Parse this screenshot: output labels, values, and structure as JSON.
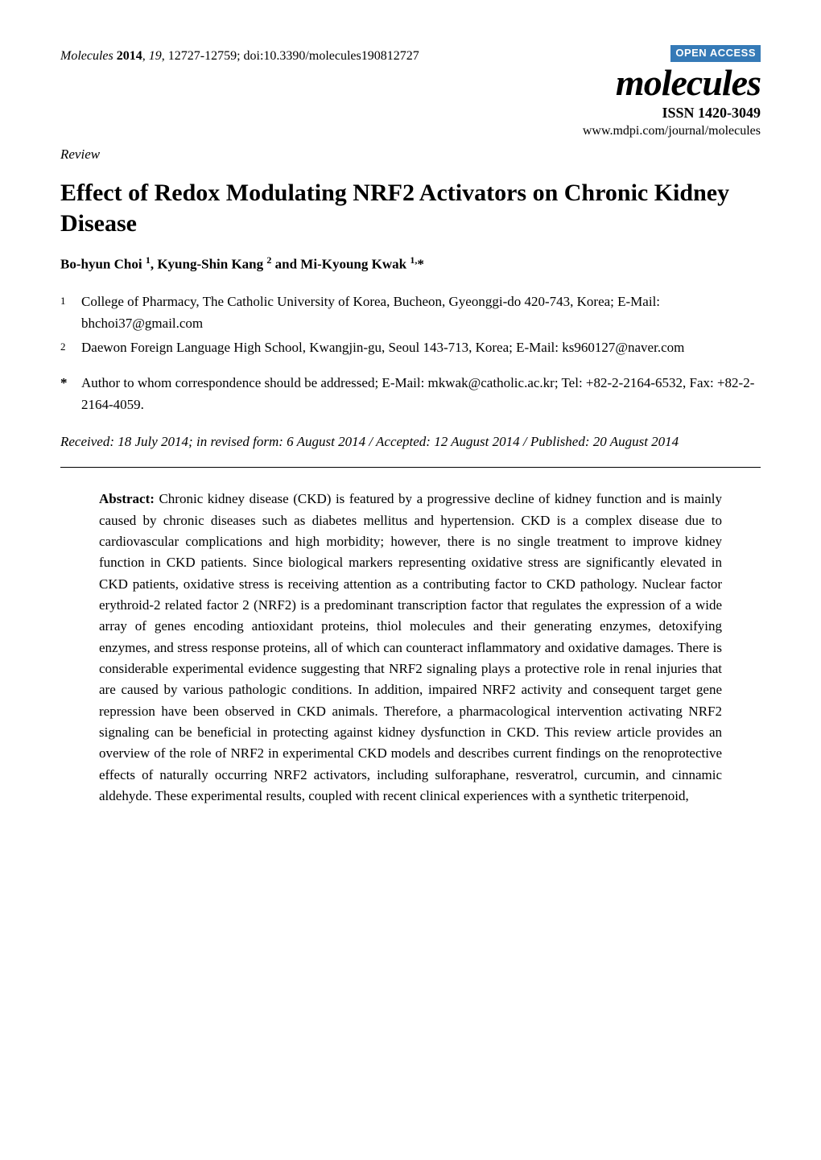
{
  "header": {
    "citation_prefix": "Molecules",
    "year": "2014",
    "volume": "19",
    "pages": "12727-12759",
    "doi": "doi:10.3390/molecules190812727",
    "open_access": "OPEN ACCESS",
    "journal_logo": "molecules",
    "issn": "ISSN 1420-3049",
    "url": "www.mdpi.com/journal/molecules"
  },
  "article_type": "Review",
  "title": "Effect of Redox Modulating NRF2 Activators on Chronic Kidney Disease",
  "authors_html": "Bo-hyun Choi <sup>1</sup>, Kyung-Shin Kang <sup>2</sup> and Mi-Kyoung Kwak <sup>1,</sup>*",
  "affiliations": [
    {
      "num": "1",
      "text": "College of Pharmacy, The Catholic University of Korea, Bucheon, Gyeonggi-do 420-743, Korea; E-Mail: bhchoi37@gmail.com"
    },
    {
      "num": "2",
      "text": "Daewon Foreign Language High School, Kwangjin-gu, Seoul 143-713, Korea; E-Mail: ks960127@naver.com"
    }
  ],
  "correspondence": {
    "mark": "*",
    "text": "Author to whom correspondence should be addressed; E-Mail: mkwak@catholic.ac.kr; Tel: +82-2-2164-6532, Fax: +82-2-2164-4059."
  },
  "dates": "Received: 18 July 2014; in revised form: 6 August 2014 / Accepted: 12 August 2014 / Published: 20 August 2014",
  "abstract": {
    "label": "Abstract:",
    "text": "Chronic kidney disease (CKD) is featured by a progressive decline of kidney function and is mainly caused by chronic diseases such as diabetes mellitus and hypertension. CKD is a complex disease due to cardiovascular complications and high morbidity; however, there is no single treatment to improve kidney function in CKD patients. Since biological markers representing oxidative stress are significantly elevated in CKD patients, oxidative stress is receiving attention as a contributing factor to CKD pathology. Nuclear factor erythroid-2 related factor 2 (NRF2) is a predominant transcription factor that regulates the expression of a wide array of genes encoding antioxidant proteins, thiol molecules and their generating enzymes, detoxifying enzymes, and stress response proteins, all of which can counteract inflammatory and oxidative damages. There is considerable experimental evidence suggesting that NRF2 signaling plays a protective role in renal injuries that are caused by various pathologic conditions. In addition, impaired NRF2 activity and consequent target gene repression have been observed in CKD animals. Therefore, a pharmacological intervention activating NRF2 signaling can be beneficial in protecting against kidney dysfunction in CKD. This review article provides an overview of the role of NRF2 in experimental CKD models and describes current findings on the renoprotective effects of naturally occurring NRF2 activators, including sulforaphane, resveratrol, curcumin, and cinnamic aldehyde. These experimental results, coupled with recent clinical experiences with a synthetic triterpenoid,"
  },
  "colors": {
    "open_access_bg": "#357ab7",
    "open_access_fg": "#ffffff",
    "text": "#000000",
    "background": "#ffffff",
    "rule": "#000000"
  }
}
